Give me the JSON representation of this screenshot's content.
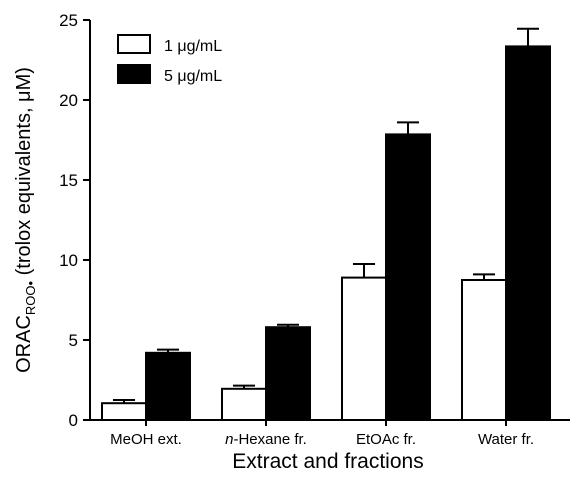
{
  "chart_data": {
    "type": "bar",
    "title": "",
    "xlabel": "Extract and fractions",
    "ylabel": {
      "main": "ORAC",
      "subscript": "ROO•",
      "rest": " (trolox equivalents, μM)"
    },
    "categories": [
      {
        "prefix": "",
        "italic": "",
        "rest": "MeOH ext."
      },
      {
        "prefix": "",
        "italic": "n",
        "rest": "-Hexane fr."
      },
      {
        "prefix": "",
        "italic": "",
        "rest": "EtOAc fr."
      },
      {
        "prefix": "",
        "italic": "",
        "rest": "Water fr."
      }
    ],
    "series": [
      {
        "name": "1 μg/mL",
        "fill": "#ffffff",
        "values": [
          1.05,
          1.95,
          8.9,
          8.75
        ],
        "errors": [
          0.2,
          0.2,
          0.85,
          0.35
        ]
      },
      {
        "name": "5 μg/mL",
        "fill": "#000000",
        "values": [
          4.2,
          5.8,
          17.85,
          23.35
        ],
        "errors": [
          0.2,
          0.15,
          0.75,
          1.1
        ]
      }
    ],
    "ylim": [
      0,
      25
    ],
    "yticks": [
      "0",
      "5",
      "10",
      "15",
      "20",
      "25"
    ],
    "grid": false,
    "legend_position": "top-left"
  }
}
